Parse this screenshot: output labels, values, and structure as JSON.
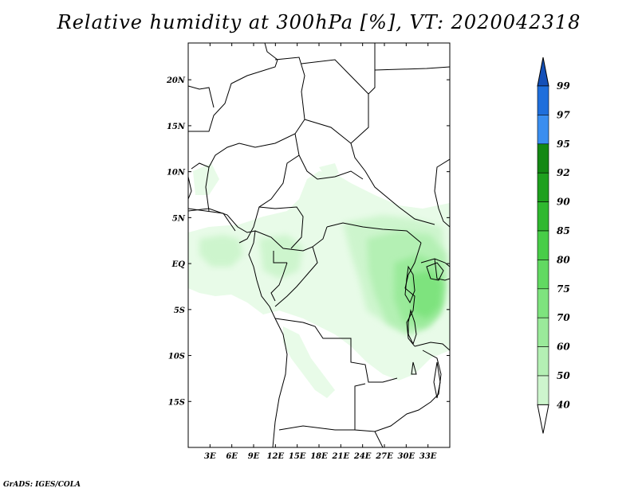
{
  "title": "Relative humidity at 300hPa [%], VT: 2020042318",
  "credit": "GrADS: IGES/COLA",
  "map": {
    "lon_range": [
      0,
      36
    ],
    "lat_range": [
      -20,
      24
    ],
    "lon_ticks": [
      "3E",
      "6E",
      "9E",
      "12E",
      "15E",
      "18E",
      "21E",
      "24E",
      "27E",
      "30E",
      "33E"
    ],
    "lat_ticks": [
      "20N",
      "15N",
      "10N",
      "5N",
      "EQ",
      "5S",
      "10S",
      "15S"
    ],
    "lon_tick_values": [
      3,
      6,
      9,
      12,
      15,
      18,
      21,
      24,
      27,
      30,
      33
    ],
    "lat_tick_values": [
      20,
      15,
      10,
      5,
      0,
      -5,
      -10,
      -15
    ]
  },
  "colorbar": {
    "levels": [
      "40",
      "50",
      "60",
      "70",
      "75",
      "80",
      "85",
      "90",
      "92",
      "95",
      "97",
      "99"
    ],
    "colors": [
      "#e8fbe8",
      "#cdf5cd",
      "#b4f0b4",
      "#9aea9a",
      "#7ee37e",
      "#62d962",
      "#48cd48",
      "#2fb82f",
      "#1ea01e",
      "#138813",
      "#3a8ef0",
      "#1f6fdc",
      "#1450b8"
    ],
    "under_color": "#ffffff"
  },
  "colors": {
    "frame": "#000000",
    "background": "#ffffff"
  }
}
